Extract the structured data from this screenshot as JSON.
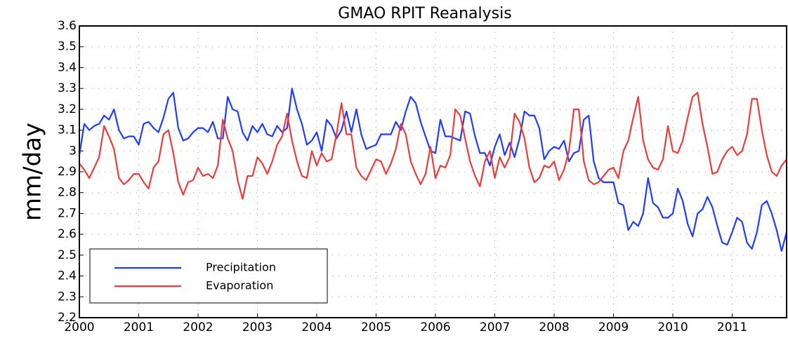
{
  "chart_data": {
    "type": "line",
    "title": "GMAO  RPIT  Reanalysis",
    "y_label": "mm/day",
    "x": [
      2000.0,
      2000.083,
      2000.167,
      2000.25,
      2000.333,
      2000.417,
      2000.5,
      2000.583,
      2000.667,
      2000.75,
      2000.833,
      2000.917,
      2001.0,
      2001.083,
      2001.167,
      2001.25,
      2001.333,
      2001.417,
      2001.5,
      2001.583,
      2001.667,
      2001.75,
      2001.833,
      2001.917,
      2002.0,
      2002.083,
      2002.167,
      2002.25,
      2002.333,
      2002.417,
      2002.5,
      2002.583,
      2002.667,
      2002.75,
      2002.833,
      2002.917,
      2003.0,
      2003.083,
      2003.167,
      2003.25,
      2003.333,
      2003.417,
      2003.5,
      2003.583,
      2003.667,
      2003.75,
      2003.833,
      2003.917,
      2004.0,
      2004.083,
      2004.167,
      2004.25,
      2004.333,
      2004.417,
      2004.5,
      2004.583,
      2004.667,
      2004.75,
      2004.833,
      2004.917,
      2005.0,
      2005.083,
      2005.167,
      2005.25,
      2005.333,
      2005.417,
      2005.5,
      2005.583,
      2005.667,
      2005.75,
      2005.833,
      2005.917,
      2006.0,
      2006.083,
      2006.167,
      2006.25,
      2006.333,
      2006.417,
      2006.5,
      2006.583,
      2006.667,
      2006.75,
      2006.833,
      2006.917,
      2007.0,
      2007.083,
      2007.167,
      2007.25,
      2007.333,
      2007.417,
      2007.5,
      2007.583,
      2007.667,
      2007.75,
      2007.833,
      2007.917,
      2008.0,
      2008.083,
      2008.167,
      2008.25,
      2008.333,
      2008.417,
      2008.5,
      2008.583,
      2008.667,
      2008.75,
      2008.833,
      2008.917,
      2009.0,
      2009.083,
      2009.167,
      2009.25,
      2009.333,
      2009.417,
      2009.5,
      2009.583,
      2009.667,
      2009.75,
      2009.833,
      2009.917,
      2010.0,
      2010.083,
      2010.167,
      2010.25,
      2010.333,
      2010.417,
      2010.5,
      2010.583,
      2010.667,
      2010.75,
      2010.833,
      2010.917,
      2011.0,
      2011.083,
      2011.167,
      2011.25,
      2011.333,
      2011.417,
      2011.5,
      2011.583,
      2011.667,
      2011.75,
      2011.833,
      2011.917
    ],
    "series": [
      {
        "name": "Precipitation",
        "color": "#1f3cff",
        "values": [
          2.98,
          3.13,
          3.1,
          3.12,
          3.13,
          3.17,
          3.15,
          3.2,
          3.1,
          3.06,
          3.07,
          3.07,
          3.03,
          3.13,
          3.14,
          3.11,
          3.09,
          3.16,
          3.25,
          3.28,
          3.11,
          3.05,
          3.06,
          3.09,
          3.11,
          3.11,
          3.09,
          3.14,
          3.06,
          3.06,
          3.26,
          3.2,
          3.19,
          3.09,
          3.05,
          3.12,
          3.09,
          3.13,
          3.08,
          3.07,
          3.12,
          3.09,
          3.11,
          3.3,
          3.2,
          3.13,
          3.03,
          3.05,
          3.09,
          3.0,
          3.15,
          3.12,
          3.06,
          3.1,
          3.19,
          3.09,
          3.2,
          3.08,
          3.01,
          3.02,
          3.03,
          3.08,
          3.08,
          3.08,
          3.14,
          3.1,
          3.19,
          3.26,
          3.23,
          3.14,
          3.07,
          3.0,
          2.99,
          3.15,
          3.07,
          3.07,
          3.06,
          3.05,
          3.19,
          3.18,
          3.07,
          2.99,
          2.99,
          2.93,
          3.02,
          3.08,
          2.98,
          3.04,
          2.97,
          3.06,
          3.19,
          3.17,
          3.17,
          3.11,
          2.96,
          3.0,
          3.02,
          3.01,
          3.05,
          2.95,
          2.99,
          3.0,
          3.15,
          3.17,
          2.95,
          2.87,
          2.85,
          2.85,
          2.85,
          2.75,
          2.74,
          2.62,
          2.66,
          2.64,
          2.7,
          2.87,
          2.75,
          2.73,
          2.68,
          2.68,
          2.7,
          2.82,
          2.76,
          2.65,
          2.59,
          2.7,
          2.72,
          2.78,
          2.73,
          2.64,
          2.56,
          2.55,
          2.61,
          2.68,
          2.66,
          2.56,
          2.53,
          2.61,
          2.74,
          2.76,
          2.7,
          2.62,
          2.52,
          2.61
        ]
      },
      {
        "name": "Evaporation",
        "color": "#f03a3a",
        "values": [
          2.94,
          2.91,
          2.87,
          2.92,
          2.97,
          3.12,
          3.07,
          3.01,
          2.87,
          2.84,
          2.86,
          2.89,
          2.89,
          2.85,
          2.82,
          2.92,
          2.95,
          3.08,
          3.1,
          2.99,
          2.85,
          2.79,
          2.85,
          2.86,
          2.92,
          2.88,
          2.89,
          2.87,
          2.93,
          3.15,
          3.06,
          3.0,
          2.86,
          2.77,
          2.88,
          2.88,
          2.97,
          2.94,
          2.89,
          2.95,
          3.03,
          3.07,
          3.18,
          3.05,
          2.95,
          2.88,
          2.87,
          3.0,
          2.93,
          2.99,
          2.95,
          2.96,
          3.08,
          3.23,
          3.08,
          3.08,
          2.92,
          2.88,
          2.86,
          2.91,
          2.96,
          2.95,
          2.89,
          2.94,
          3.01,
          3.13,
          3.08,
          2.95,
          2.89,
          2.84,
          2.89,
          3.02,
          2.87,
          2.93,
          2.92,
          2.98,
          3.2,
          3.17,
          3.06,
          2.95,
          2.88,
          2.83,
          2.95,
          3.0,
          2.87,
          2.97,
          2.92,
          2.97,
          3.18,
          3.14,
          3.06,
          2.92,
          2.85,
          2.87,
          2.93,
          2.92,
          2.95,
          2.86,
          2.91,
          3.0,
          3.2,
          3.2,
          2.95,
          2.86,
          2.84,
          2.85,
          2.88,
          2.91,
          2.92,
          2.87,
          3.0,
          3.05,
          3.16,
          3.26,
          3.05,
          2.96,
          2.92,
          2.91,
          2.96,
          3.12,
          3.0,
          2.99,
          3.05,
          3.16,
          3.26,
          3.28,
          3.13,
          3.02,
          2.89,
          2.9,
          2.96,
          3.0,
          3.02,
          2.98,
          3.0,
          3.08,
          3.25,
          3.25,
          3.1,
          2.98,
          2.9,
          2.88,
          2.93,
          2.96
        ]
      }
    ],
    "xlim": [
      2000,
      2011.917
    ],
    "xticks": [
      2000,
      2001,
      2002,
      2003,
      2004,
      2005,
      2006,
      2007,
      2008,
      2009,
      2010,
      2011
    ],
    "ylim": [
      2.2,
      3.6
    ],
    "yticks": [
      2.2,
      2.3,
      2.4,
      2.5,
      2.6,
      2.7,
      2.8,
      2.9,
      3,
      3.1,
      3.2,
      3.3,
      3.4,
      3.5,
      3.6
    ],
    "grid": true
  }
}
